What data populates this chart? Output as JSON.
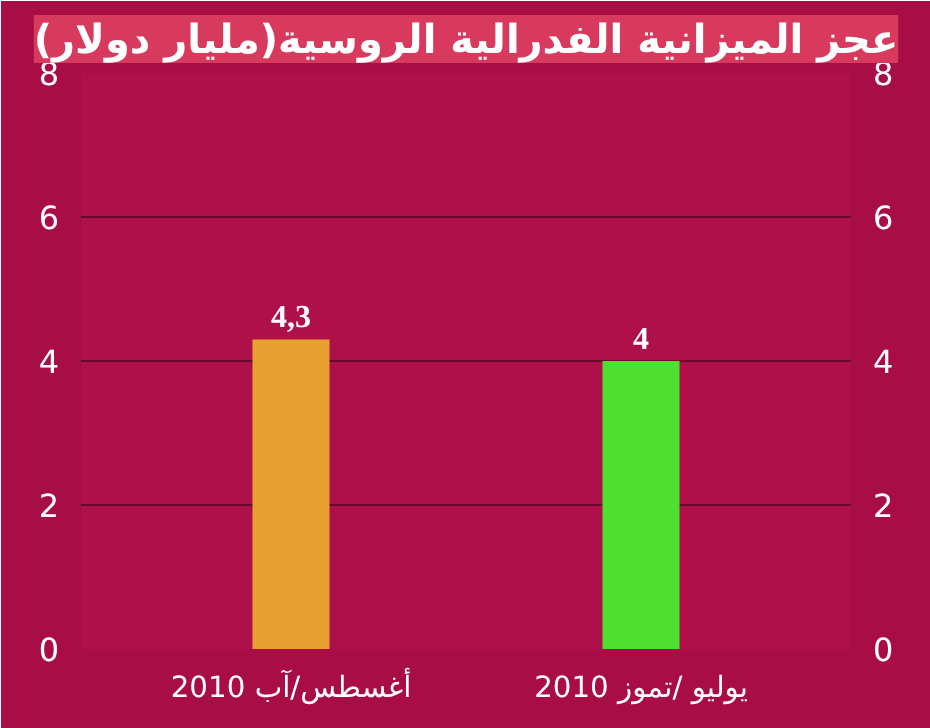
{
  "chart_data": {
    "type": "bar",
    "title": "عجز الميزانية الفدرالية الروسية(مليار دولار)",
    "categories": [
      "أغسطس/آب 2010",
      "يوليو /تموز 2010"
    ],
    "values": [
      4.3,
      4
    ],
    "colors": [
      "#e8a030",
      "#4ee030"
    ],
    "value_labels": [
      "4,3",
      "4"
    ],
    "ylim": [
      0,
      8
    ],
    "yticks": [
      0,
      2,
      4,
      6,
      8
    ],
    "y2lim": [
      0,
      8
    ],
    "y2ticks": [
      0,
      2,
      4,
      6,
      8
    ],
    "grid": "y"
  }
}
